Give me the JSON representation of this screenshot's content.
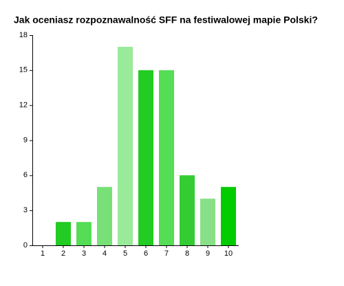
{
  "chart_data": {
    "type": "bar",
    "title": "Jak oceniasz rozpoznawalność SFF na festiwalowej mapie Polski?",
    "categories": [
      "1",
      "2",
      "3",
      "4",
      "5",
      "6",
      "7",
      "8",
      "9",
      "10"
    ],
    "values": [
      0,
      2,
      2,
      5,
      17,
      15,
      15,
      6,
      4,
      5
    ],
    "colors": [
      "#33cc33",
      "#22cc22",
      "#55dd55",
      "#77e077",
      "#99ea99",
      "#22cc22",
      "#55dd55",
      "#33cc33",
      "#88e088",
      "#00cc00"
    ],
    "ylim": [
      0,
      18
    ],
    "yticks": [
      0,
      3,
      6,
      9,
      12,
      15,
      18
    ],
    "grid": false
  }
}
